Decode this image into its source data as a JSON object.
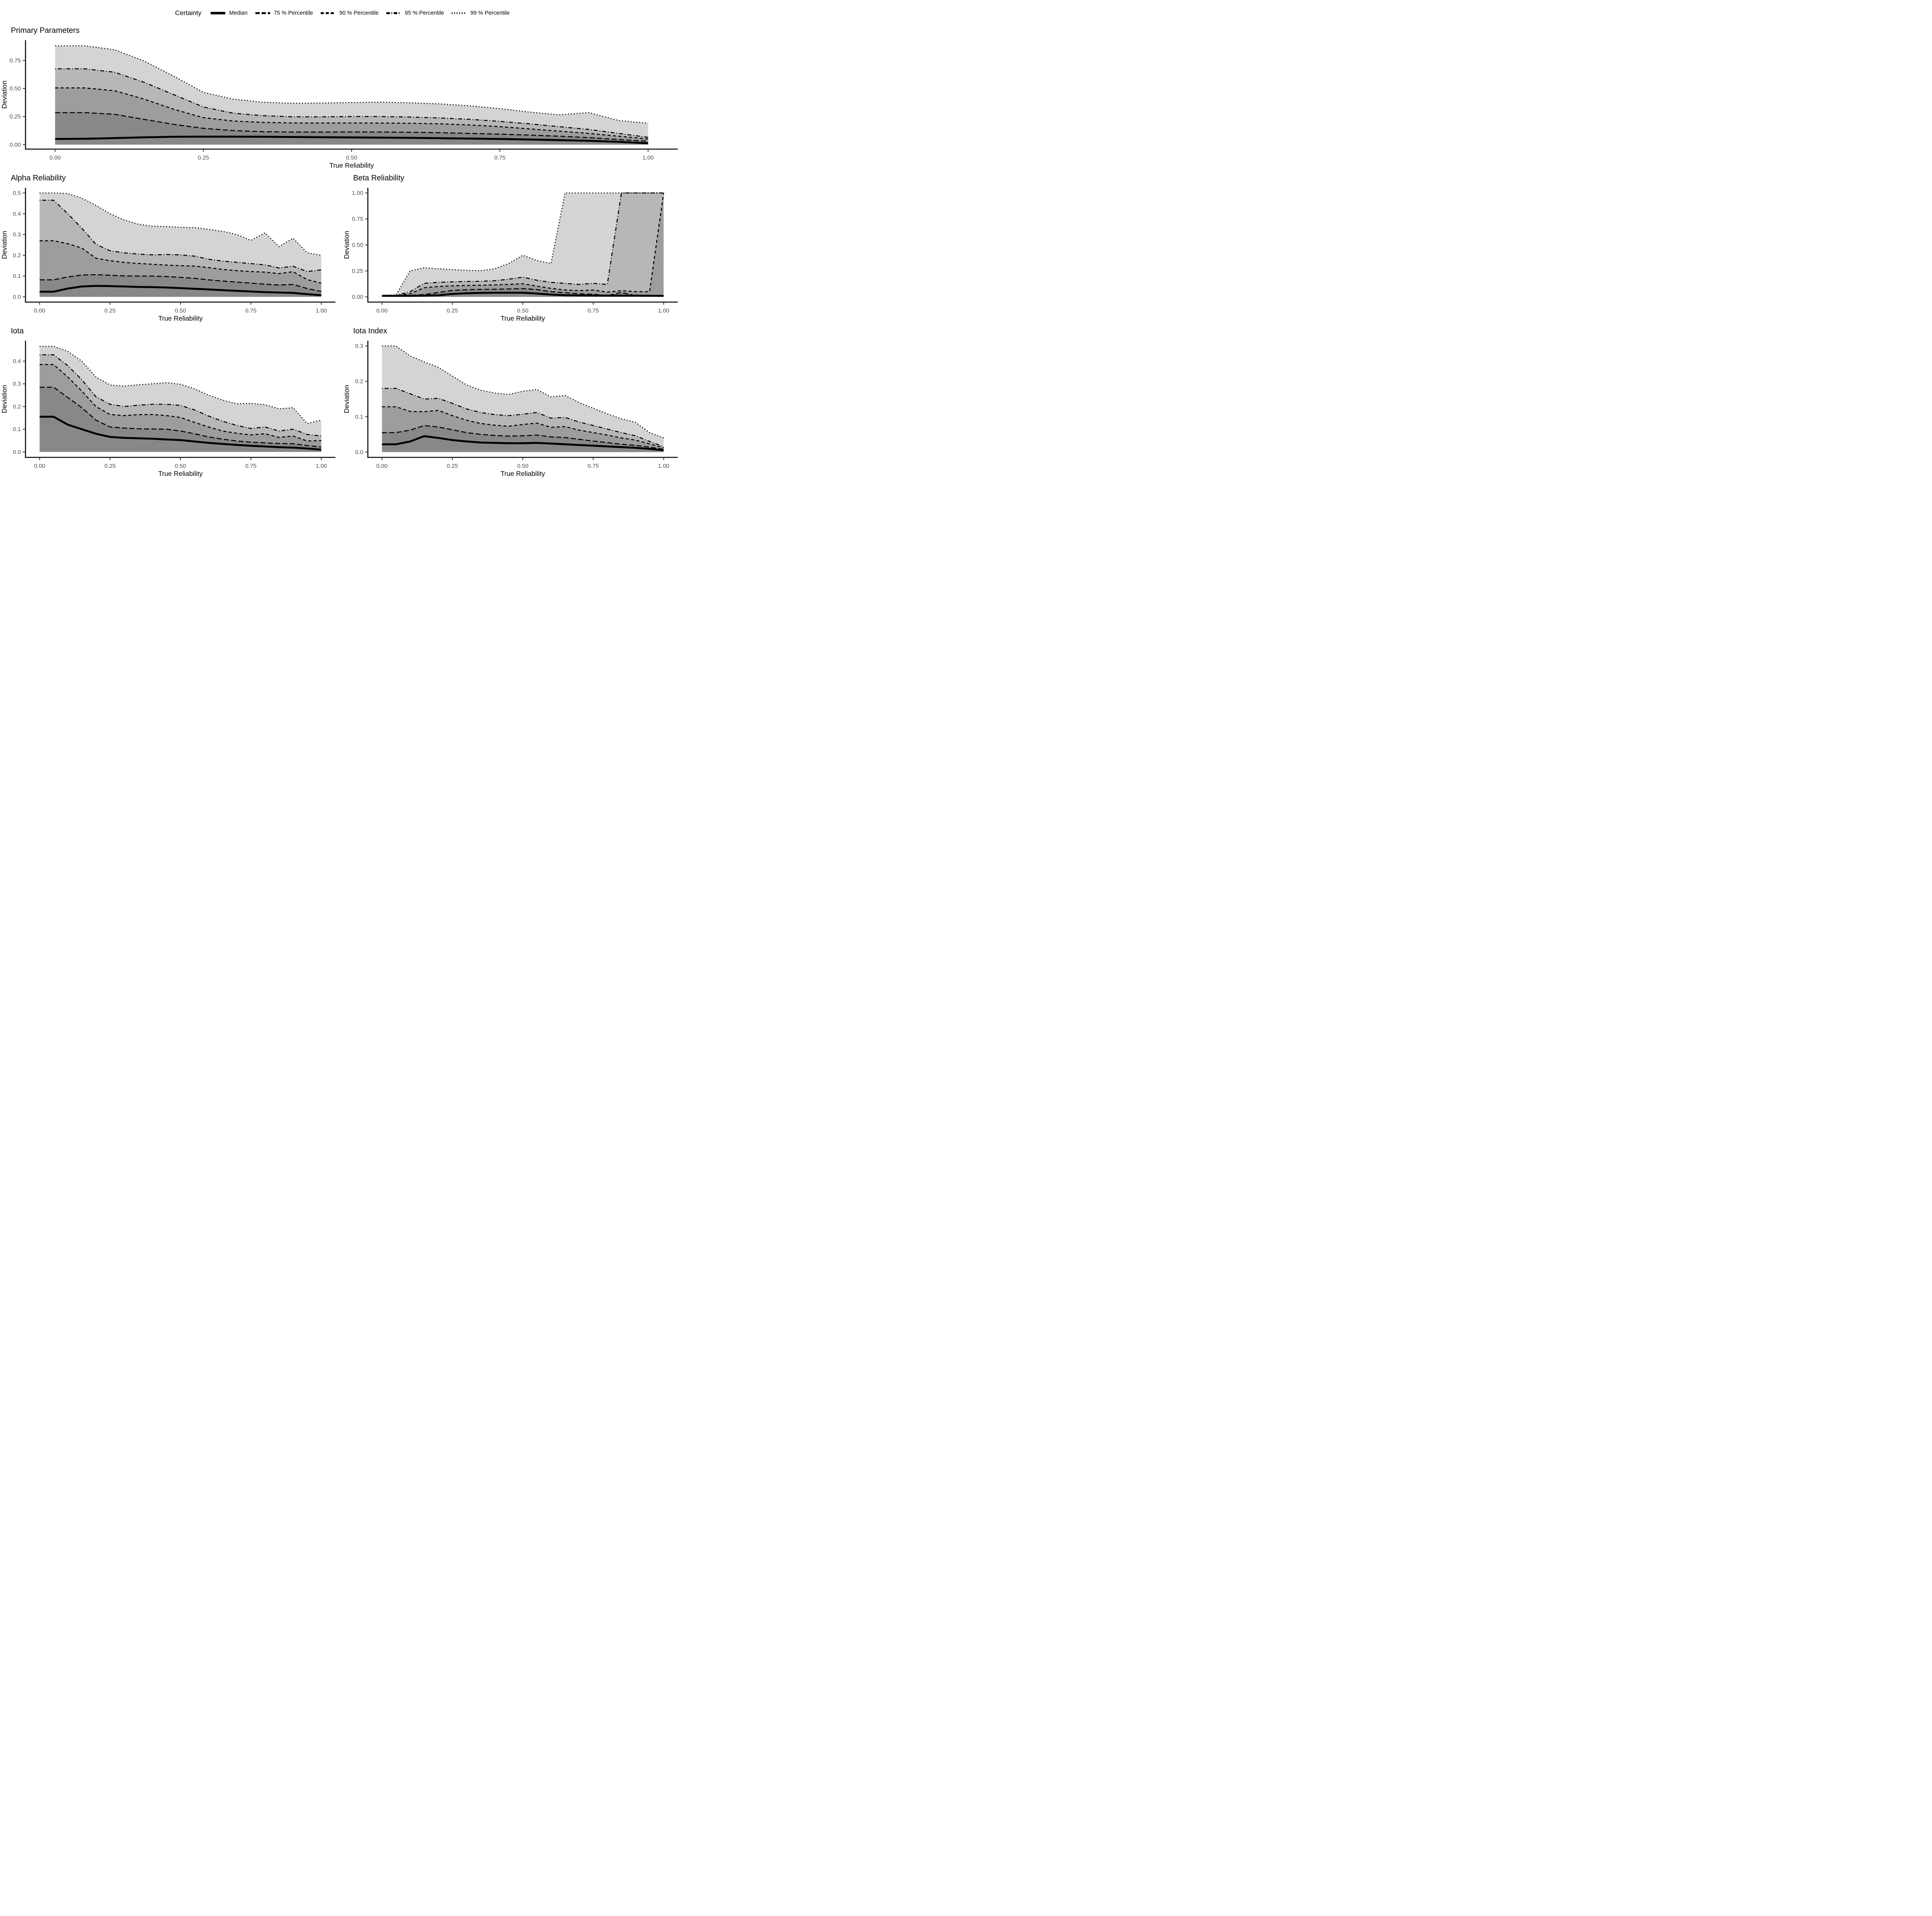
{
  "legend": {
    "title": "Certainty",
    "entries": [
      {
        "label": "Median",
        "linetype": "solid"
      },
      {
        "label": "75 % Percentile",
        "linetype": "longdash"
      },
      {
        "label": "90 % Percentile",
        "linetype": "dashed"
      },
      {
        "label": "95 % Percentile",
        "linetype": "dotdash"
      },
      {
        "label": "99 % Percentile",
        "linetype": "dotted"
      }
    ]
  },
  "colors": {
    "band_99": "#d4d4d4",
    "band_95": "#b7b7b7",
    "band_90": "#9d9d9d",
    "band_75": "#888888",
    "line": "#000000",
    "axis": "#000000",
    "tick": "#333333",
    "tick_label": "#4d4d4d"
  },
  "chart_data": [
    {
      "type": "area",
      "title": "Primary Parameters",
      "xlabel": "True Reliability",
      "ylabel": "Deviation",
      "legend_position": "top",
      "grid": false,
      "xlim": [
        -0.05,
        1.05
      ],
      "ylim": [
        -0.04,
        0.93
      ],
      "xticks": [
        0,
        0.25,
        0.5,
        0.75,
        1
      ],
      "xtick_labels": [
        "0.00",
        "0.25",
        "0.50",
        "0.75",
        "1.00"
      ],
      "yticks": [
        0,
        0.25,
        0.5,
        0.75
      ],
      "ytick_labels": [
        "0.00",
        "0.25",
        "0.50",
        "0.75"
      ],
      "x": [
        0,
        0.05,
        0.1,
        0.15,
        0.2,
        0.25,
        0.3,
        0.35,
        0.4,
        0.45,
        0.5,
        0.55,
        0.6,
        0.65,
        0.7,
        0.75,
        0.8,
        0.85,
        0.9,
        0.95,
        1
      ],
      "series": [
        {
          "name": "99 % Percentile",
          "linetype": "dotted",
          "values": [
            0.88,
            0.88,
            0.845,
            0.745,
            0.61,
            0.465,
            0.405,
            0.378,
            0.368,
            0.37,
            0.375,
            0.378,
            0.372,
            0.362,
            0.345,
            0.32,
            0.29,
            0.265,
            0.285,
            0.215,
            0.19
          ]
        },
        {
          "name": "95 % Percentile",
          "linetype": "dotdash",
          "values": [
            0.675,
            0.675,
            0.645,
            0.555,
            0.445,
            0.335,
            0.28,
            0.258,
            0.248,
            0.247,
            0.25,
            0.25,
            0.245,
            0.237,
            0.225,
            0.207,
            0.185,
            0.16,
            0.135,
            0.1,
            0.065
          ]
        },
        {
          "name": "90 % Percentile",
          "linetype": "dashed",
          "values": [
            0.505,
            0.505,
            0.48,
            0.405,
            0.315,
            0.24,
            0.21,
            0.198,
            0.193,
            0.192,
            0.193,
            0.192,
            0.19,
            0.185,
            0.175,
            0.16,
            0.14,
            0.12,
            0.1,
            0.075,
            0.05
          ]
        },
        {
          "name": "75 % Percentile",
          "linetype": "longdash",
          "values": [
            0.285,
            0.285,
            0.27,
            0.225,
            0.18,
            0.145,
            0.125,
            0.115,
            0.112,
            0.112,
            0.113,
            0.112,
            0.11,
            0.106,
            0.1,
            0.093,
            0.085,
            0.075,
            0.062,
            0.045,
            0.03
          ]
        },
        {
          "name": "Median",
          "linetype": "solid",
          "values": [
            0.05,
            0.052,
            0.058,
            0.065,
            0.07,
            0.071,
            0.071,
            0.07,
            0.068,
            0.066,
            0.064,
            0.062,
            0.06,
            0.057,
            0.054,
            0.05,
            0.045,
            0.04,
            0.034,
            0.025,
            0.012
          ]
        }
      ]
    },
    {
      "type": "area",
      "title": "Alpha Reliability",
      "xlabel": "True Reliability",
      "ylabel": "Deviation",
      "grid": false,
      "xlim": [
        -0.05,
        1.05
      ],
      "ylim": [
        -0.025,
        0.525
      ],
      "xticks": [
        0,
        0.25,
        0.5,
        0.75,
        1
      ],
      "xtick_labels": [
        "0.00",
        "0.25",
        "0.50",
        "0.75",
        "1.00"
      ],
      "yticks": [
        0,
        0.1,
        0.2,
        0.3,
        0.4,
        0.5
      ],
      "ytick_labels": [
        "0.0",
        "0.1",
        "0.2",
        "0.3",
        "0.4",
        "0.5"
      ],
      "x": [
        0,
        0.05,
        0.1,
        0.15,
        0.2,
        0.25,
        0.3,
        0.35,
        0.4,
        0.45,
        0.5,
        0.55,
        0.6,
        0.65,
        0.7,
        0.75,
        0.8,
        0.85,
        0.9,
        0.95,
        1
      ],
      "series": [
        {
          "name": "99 % Percentile",
          "linetype": "dotted",
          "values": [
            0.5,
            0.5,
            0.497,
            0.475,
            0.44,
            0.4,
            0.37,
            0.35,
            0.34,
            0.338,
            0.335,
            0.333,
            0.325,
            0.315,
            0.3,
            0.272,
            0.308,
            0.242,
            0.282,
            0.212,
            0.2
          ]
        },
        {
          "name": "95 % Percentile",
          "linetype": "dotdash",
          "values": [
            0.465,
            0.465,
            0.4,
            0.33,
            0.253,
            0.222,
            0.212,
            0.206,
            0.202,
            0.204,
            0.202,
            0.196,
            0.181,
            0.172,
            0.166,
            0.16,
            0.154,
            0.139,
            0.147,
            0.122,
            0.13
          ]
        },
        {
          "name": "90 % Percentile",
          "linetype": "dashed",
          "values": [
            0.27,
            0.27,
            0.256,
            0.235,
            0.186,
            0.174,
            0.166,
            0.161,
            0.157,
            0.153,
            0.15,
            0.148,
            0.141,
            0.132,
            0.126,
            0.122,
            0.119,
            0.112,
            0.121,
            0.083,
            0.066
          ]
        },
        {
          "name": "75 % Percentile",
          "linetype": "longdash",
          "values": [
            0.082,
            0.082,
            0.096,
            0.105,
            0.107,
            0.104,
            0.101,
            0.1,
            0.1,
            0.098,
            0.094,
            0.089,
            0.082,
            0.076,
            0.071,
            0.066,
            0.061,
            0.057,
            0.06,
            0.04,
            0.026
          ]
        },
        {
          "name": "Median",
          "linetype": "solid",
          "values": [
            0.025,
            0.025,
            0.04,
            0.05,
            0.053,
            0.052,
            0.05,
            0.048,
            0.047,
            0.045,
            0.042,
            0.039,
            0.036,
            0.032,
            0.029,
            0.026,
            0.023,
            0.021,
            0.019,
            0.013,
            0.008
          ]
        }
      ]
    },
    {
      "type": "area",
      "title": "Beta Reliability",
      "xlabel": "True Reliability",
      "ylabel": "Deviation",
      "grid": false,
      "xlim": [
        -0.05,
        1.05
      ],
      "ylim": [
        -0.05,
        1.05
      ],
      "xticks": [
        0,
        0.25,
        0.5,
        0.75,
        1
      ],
      "xtick_labels": [
        "0.00",
        "0.25",
        "0.50",
        "0.75",
        "1.00"
      ],
      "yticks": [
        0,
        0.25,
        0.5,
        0.75,
        1
      ],
      "ytick_labels": [
        "0.00",
        "0.25",
        "0.50",
        "0.75",
        "1.00"
      ],
      "x": [
        0,
        0.05,
        0.1,
        0.15,
        0.2,
        0.25,
        0.3,
        0.35,
        0.4,
        0.45,
        0.5,
        0.55,
        0.6,
        0.65,
        0.7,
        0.75,
        0.8,
        0.85,
        0.9,
        0.95,
        1
      ],
      "series": [
        {
          "name": "99 % Percentile",
          "linetype": "dotted",
          "values": [
            0.015,
            0.02,
            0.25,
            0.28,
            0.27,
            0.262,
            0.255,
            0.252,
            0.27,
            0.32,
            0.4,
            0.35,
            0.32,
            1,
            1,
            1,
            1,
            1,
            1,
            1,
            1
          ]
        },
        {
          "name": "95 % Percentile",
          "linetype": "dotdash",
          "values": [
            0.014,
            0.014,
            0.05,
            0.13,
            0.14,
            0.145,
            0.148,
            0.15,
            0.155,
            0.17,
            0.19,
            0.16,
            0.14,
            0.13,
            0.12,
            0.13,
            0.12,
            1,
            1,
            1,
            1
          ]
        },
        {
          "name": "90 % Percentile",
          "linetype": "dashed",
          "values": [
            0.013,
            0.013,
            0.03,
            0.088,
            0.1,
            0.106,
            0.11,
            0.112,
            0.115,
            0.12,
            0.126,
            0.103,
            0.082,
            0.066,
            0.06,
            0.066,
            0.046,
            0.06,
            0.05,
            0.05,
            1
          ]
        },
        {
          "name": "75 % Percentile",
          "linetype": "longdash",
          "values": [
            0.012,
            0.012,
            0.015,
            0.022,
            0.042,
            0.062,
            0.068,
            0.072,
            0.073,
            0.076,
            0.08,
            0.07,
            0.05,
            0.04,
            0.03,
            0.025,
            0.012,
            0.042,
            0.012,
            0.008,
            0.008
          ]
        },
        {
          "name": "Median",
          "linetype": "solid",
          "values": [
            0.01,
            0.01,
            0.01,
            0.012,
            0.015,
            0.028,
            0.035,
            0.038,
            0.04,
            0.04,
            0.04,
            0.032,
            0.022,
            0.016,
            0.014,
            0.013,
            0.012,
            0.012,
            0.012,
            0.011,
            0.01
          ]
        }
      ]
    },
    {
      "type": "area",
      "title": "Iota",
      "xlabel": "True Reliability",
      "ylabel": "Deviation",
      "grid": false,
      "xlim": [
        -0.05,
        1.05
      ],
      "ylim": [
        -0.024,
        0.49
      ],
      "xticks": [
        0,
        0.25,
        0.5,
        0.75,
        1
      ],
      "xtick_labels": [
        "0.00",
        "0.25",
        "0.50",
        "0.75",
        "1.00"
      ],
      "yticks": [
        0,
        0.1,
        0.2,
        0.3,
        0.4
      ],
      "ytick_labels": [
        "0.0",
        "0.1",
        "0.2",
        "0.3",
        "0.4"
      ],
      "x": [
        0,
        0.05,
        0.1,
        0.15,
        0.2,
        0.25,
        0.3,
        0.35,
        0.4,
        0.45,
        0.5,
        0.55,
        0.6,
        0.65,
        0.7,
        0.75,
        0.8,
        0.85,
        0.9,
        0.95,
        1
      ],
      "series": [
        {
          "name": "99 % Percentile",
          "linetype": "dotted",
          "values": [
            0.465,
            0.465,
            0.443,
            0.4,
            0.33,
            0.295,
            0.29,
            0.296,
            0.3,
            0.305,
            0.298,
            0.278,
            0.25,
            0.228,
            0.212,
            0.214,
            0.208,
            0.19,
            0.195,
            0.125,
            0.14
          ]
        },
        {
          "name": "95 % Percentile",
          "linetype": "dotdash",
          "values": [
            0.428,
            0.428,
            0.38,
            0.318,
            0.243,
            0.21,
            0.2,
            0.206,
            0.21,
            0.21,
            0.205,
            0.185,
            0.158,
            0.135,
            0.117,
            0.103,
            0.11,
            0.092,
            0.1,
            0.077,
            0.07
          ]
        },
        {
          "name": "90 % Percentile",
          "linetype": "dashed",
          "values": [
            0.385,
            0.385,
            0.33,
            0.268,
            0.2,
            0.165,
            0.16,
            0.164,
            0.165,
            0.16,
            0.152,
            0.13,
            0.11,
            0.092,
            0.082,
            0.075,
            0.08,
            0.064,
            0.07,
            0.048,
            0.05
          ]
        },
        {
          "name": "75 % Percentile",
          "linetype": "longdash",
          "values": [
            0.285,
            0.285,
            0.24,
            0.195,
            0.14,
            0.11,
            0.105,
            0.102,
            0.101,
            0.1,
            0.092,
            0.08,
            0.066,
            0.056,
            0.048,
            0.043,
            0.04,
            0.037,
            0.036,
            0.028,
            0.022
          ]
        },
        {
          "name": "Median",
          "linetype": "solid",
          "values": [
            0.155,
            0.155,
            0.12,
            0.1,
            0.08,
            0.066,
            0.062,
            0.06,
            0.058,
            0.055,
            0.052,
            0.046,
            0.04,
            0.035,
            0.031,
            0.027,
            0.024,
            0.021,
            0.019,
            0.015,
            0.01
          ]
        }
      ]
    },
    {
      "type": "area",
      "title": "Iota Index",
      "xlabel": "True Reliability",
      "ylabel": "Deviation",
      "grid": false,
      "xlim": [
        -0.05,
        1.05
      ],
      "ylim": [
        -0.015,
        0.315
      ],
      "xticks": [
        0,
        0.25,
        0.5,
        0.75,
        1
      ],
      "xtick_labels": [
        "0.00",
        "0.25",
        "0.50",
        "0.75",
        "1.00"
      ],
      "yticks": [
        0,
        0.1,
        0.2,
        0.3
      ],
      "ytick_labels": [
        "0.0",
        "0.1",
        "0.2",
        "0.3"
      ],
      "x": [
        0,
        0.05,
        0.1,
        0.15,
        0.2,
        0.25,
        0.3,
        0.35,
        0.4,
        0.45,
        0.5,
        0.55,
        0.6,
        0.65,
        0.7,
        0.75,
        0.8,
        0.85,
        0.9,
        0.95,
        1
      ],
      "series": [
        {
          "name": "99 % Percentile",
          "linetype": "dotted",
          "values": [
            0.3,
            0.3,
            0.272,
            0.255,
            0.24,
            0.215,
            0.19,
            0.175,
            0.167,
            0.163,
            0.172,
            0.177,
            0.156,
            0.16,
            0.14,
            0.124,
            0.108,
            0.094,
            0.084,
            0.055,
            0.04
          ]
        },
        {
          "name": "95 % Percentile",
          "linetype": "dotdash",
          "values": [
            0.18,
            0.18,
            0.165,
            0.15,
            0.152,
            0.138,
            0.122,
            0.112,
            0.106,
            0.103,
            0.107,
            0.112,
            0.096,
            0.098,
            0.085,
            0.075,
            0.065,
            0.055,
            0.046,
            0.03,
            0.015
          ]
        },
        {
          "name": "90 % Percentile",
          "linetype": "dashed",
          "values": [
            0.128,
            0.128,
            0.115,
            0.114,
            0.118,
            0.103,
            0.09,
            0.081,
            0.076,
            0.073,
            0.078,
            0.082,
            0.07,
            0.072,
            0.062,
            0.055,
            0.048,
            0.04,
            0.034,
            0.023,
            0.012
          ]
        },
        {
          "name": "75 % Percentile",
          "linetype": "longdash",
          "values": [
            0.055,
            0.055,
            0.062,
            0.075,
            0.071,
            0.063,
            0.055,
            0.05,
            0.047,
            0.045,
            0.046,
            0.048,
            0.043,
            0.041,
            0.036,
            0.031,
            0.027,
            0.022,
            0.019,
            0.014,
            0.008
          ]
        },
        {
          "name": "Median",
          "linetype": "solid",
          "values": [
            0.022,
            0.022,
            0.03,
            0.045,
            0.04,
            0.034,
            0.03,
            0.027,
            0.026,
            0.025,
            0.025,
            0.026,
            0.024,
            0.022,
            0.02,
            0.018,
            0.016,
            0.014,
            0.012,
            0.009,
            0.005
          ]
        }
      ]
    }
  ]
}
